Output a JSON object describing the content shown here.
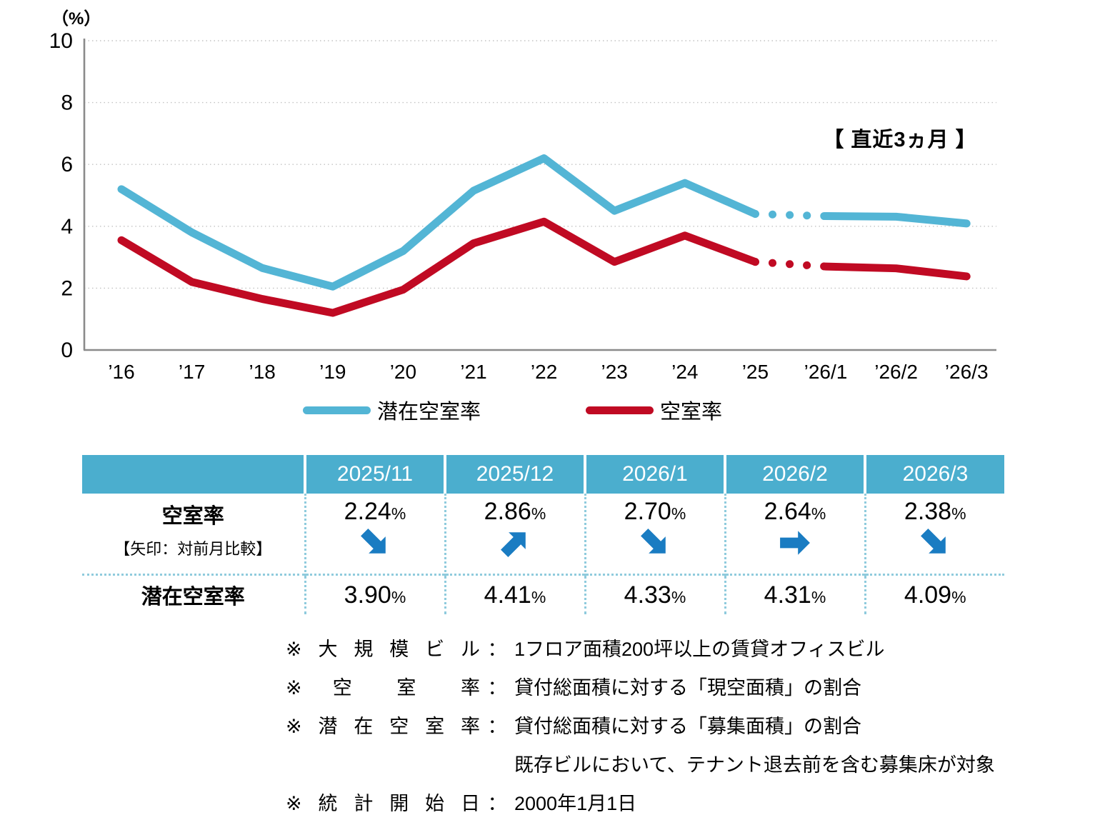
{
  "chart_data": {
    "type": "line",
    "title": "",
    "unit_label": "（%）",
    "recent_label": "【 直近3ヵ月 】",
    "x_labels": [
      "’16",
      "’17",
      "’18",
      "’19",
      "’20",
      "’21",
      "’22",
      "’23",
      "’24",
      "’25",
      "’26/1",
      "’26/2",
      "’26/3"
    ],
    "ylim": [
      0,
      10
    ],
    "yticks": [
      0,
      2,
      4,
      6,
      8,
      10
    ],
    "grid": "horizontal-dotted",
    "legend_position": "bottom",
    "dotted_segment_between": [
      "’25",
      "’26/1"
    ],
    "series": [
      {
        "name": "潜在空室率",
        "color": "#53B5D5",
        "values": [
          5.2,
          3.8,
          2.65,
          2.05,
          3.2,
          5.15,
          6.2,
          4.5,
          5.4,
          4.4,
          4.33,
          4.31,
          4.09
        ]
      },
      {
        "name": "空室率",
        "color": "#C00A23",
        "values": [
          3.55,
          2.2,
          1.65,
          1.2,
          1.95,
          3.45,
          4.15,
          2.85,
          3.7,
          2.85,
          2.7,
          2.64,
          2.38
        ]
      }
    ]
  },
  "table": {
    "arrow_color": "#1A7CC2",
    "col_headers": [
      "2025/11",
      "2025/12",
      "2026/1",
      "2026/2",
      "2026/3"
    ],
    "rows": [
      {
        "label": "空室率",
        "sublabel": "【矢印：対前月比較】",
        "unit": "%",
        "values": [
          "2.24",
          "2.86",
          "2.70",
          "2.64",
          "2.38"
        ],
        "arrows": [
          "down",
          "up",
          "down",
          "right",
          "down"
        ]
      },
      {
        "label": "潜在空室率",
        "unit": "%",
        "values": [
          "3.90",
          "4.41",
          "4.33",
          "4.31",
          "4.09"
        ]
      }
    ]
  },
  "footnotes": [
    {
      "label": "※ 大 規 模 ビ ル",
      "colon": "：",
      "text": "1フロア面積200坪以上の賃貸オフィスビル"
    },
    {
      "label": "※ 空　室　率",
      "colon": "：",
      "text": "貸付総面積に対する「現空面積」の割合"
    },
    {
      "label": "※ 潜 在 空 室 率",
      "colon": "：",
      "text": "貸付総面積に対する「募集面積」の割合"
    },
    {
      "label": "",
      "colon": "",
      "text": "既存ビルにおいて、テナント退去前を含む募集床が対象"
    },
    {
      "label": "※ 統 計 開 始 日",
      "colon": "：",
      "text": "2000年1月1日"
    }
  ]
}
